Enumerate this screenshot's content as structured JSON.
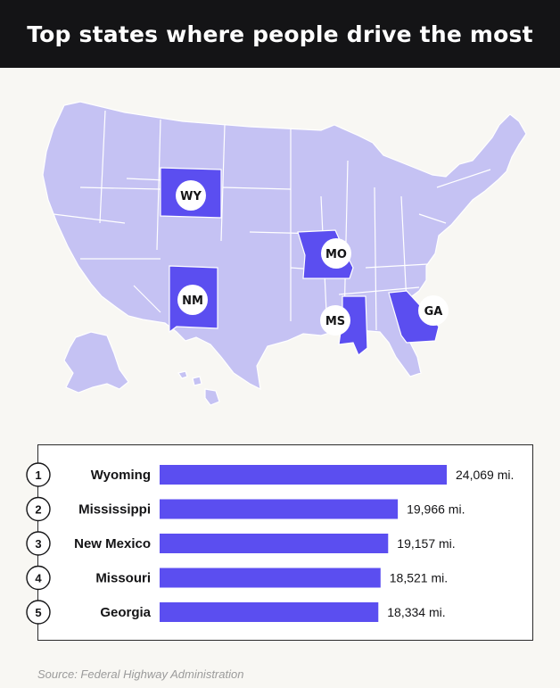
{
  "title": "Top states where people drive the most",
  "colors": {
    "header_bg": "#141416",
    "map_fill": "#c5c2f3",
    "map_stroke": "#ffffff",
    "highlight": "#5b4ef0",
    "bar": "#5b4ef0",
    "badge_bg": "#ffffff"
  },
  "map": {
    "highlighted_states": [
      {
        "code": "WY",
        "name": "Wyoming"
      },
      {
        "code": "NM",
        "name": "New Mexico"
      },
      {
        "code": "MO",
        "name": "Missouri"
      },
      {
        "code": "MS",
        "name": "Mississippi"
      },
      {
        "code": "GA",
        "name": "Georgia"
      }
    ]
  },
  "chart_data": {
    "type": "bar",
    "orientation": "horizontal",
    "categories": [
      "Wyoming",
      "Mississippi",
      "New Mexico",
      "Missouri",
      "Georgia"
    ],
    "ranks": [
      "1",
      "2",
      "3",
      "4",
      "5"
    ],
    "values": [
      24069,
      19966,
      19157,
      18521,
      18334
    ],
    "value_labels": [
      "24,069 mi.",
      "19,966 mi.",
      "19,157 mi.",
      "18,521 mi.",
      "18,334 mi."
    ],
    "unit": "mi.",
    "title": "",
    "xlabel": "",
    "ylabel": "",
    "grid": false
  },
  "source": "Source: Federal Highway Administration"
}
